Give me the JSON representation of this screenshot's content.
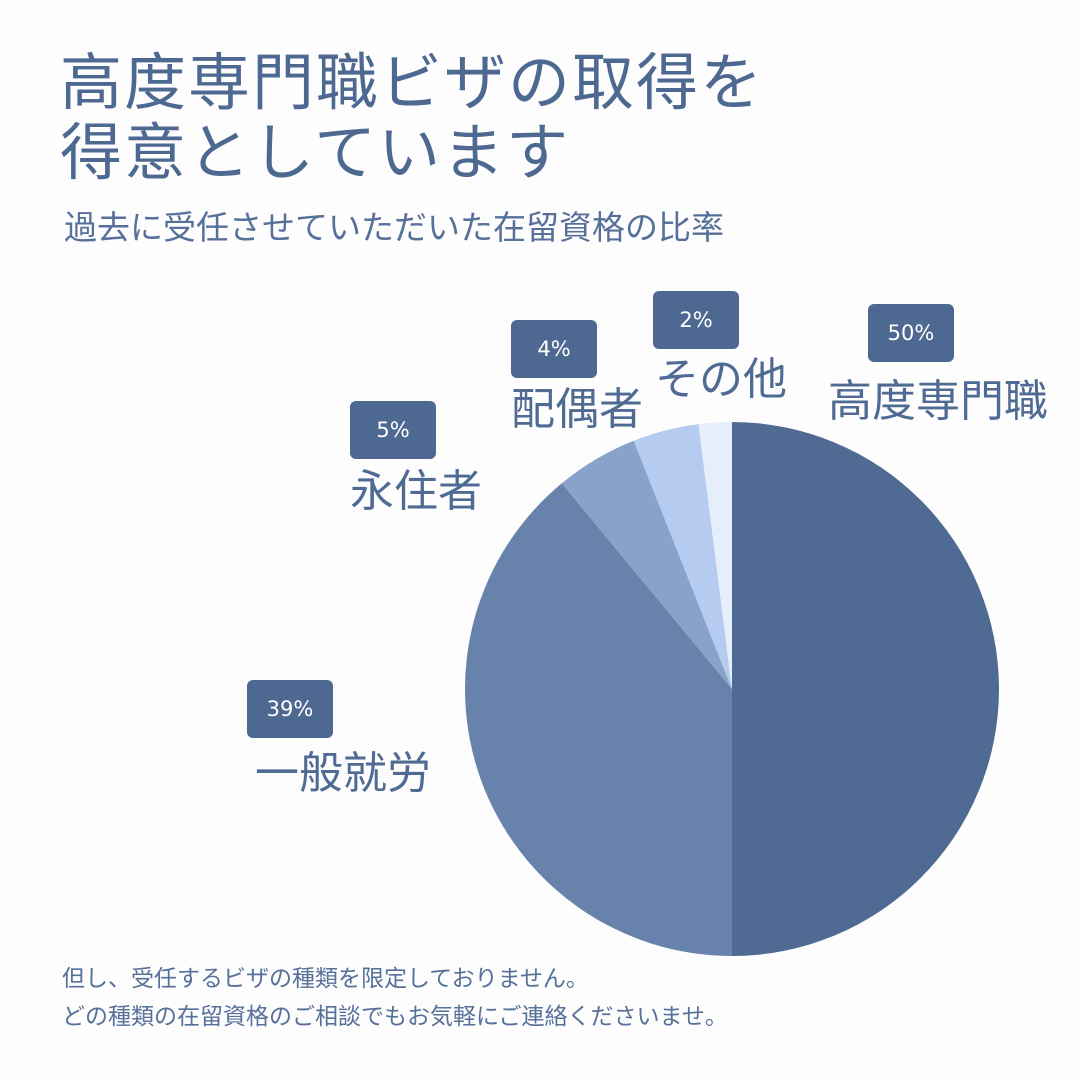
{
  "header": {
    "title_line1": "高度専門職ビザの取得を",
    "title_line2": "得意としています",
    "subtitle": "過去に受任させていただいた在留資格の比率"
  },
  "chart_data": {
    "type": "pie",
    "slices": [
      {
        "label": "高度専門職",
        "value": 50,
        "value_label": "50%",
        "color": "#4f6a93"
      },
      {
        "label": "一般就労",
        "value": 39,
        "value_label": "39%",
        "color": "#6883ab"
      },
      {
        "label": "永住者",
        "value": 5,
        "value_label": "5%",
        "color": "#88a2c9"
      },
      {
        "label": "配偶者",
        "value": 4,
        "value_label": "4%",
        "color": "#b5cbef"
      },
      {
        "label": "その他",
        "value": 2,
        "value_label": "2%",
        "color": "#e7eefb"
      }
    ]
  },
  "footer": {
    "note_line1": "但し、受任するビザの種類を限定しておりません。",
    "note_line2": "どの種類の在留資格のご相談でもお気軽にご連絡くださいませ。"
  }
}
